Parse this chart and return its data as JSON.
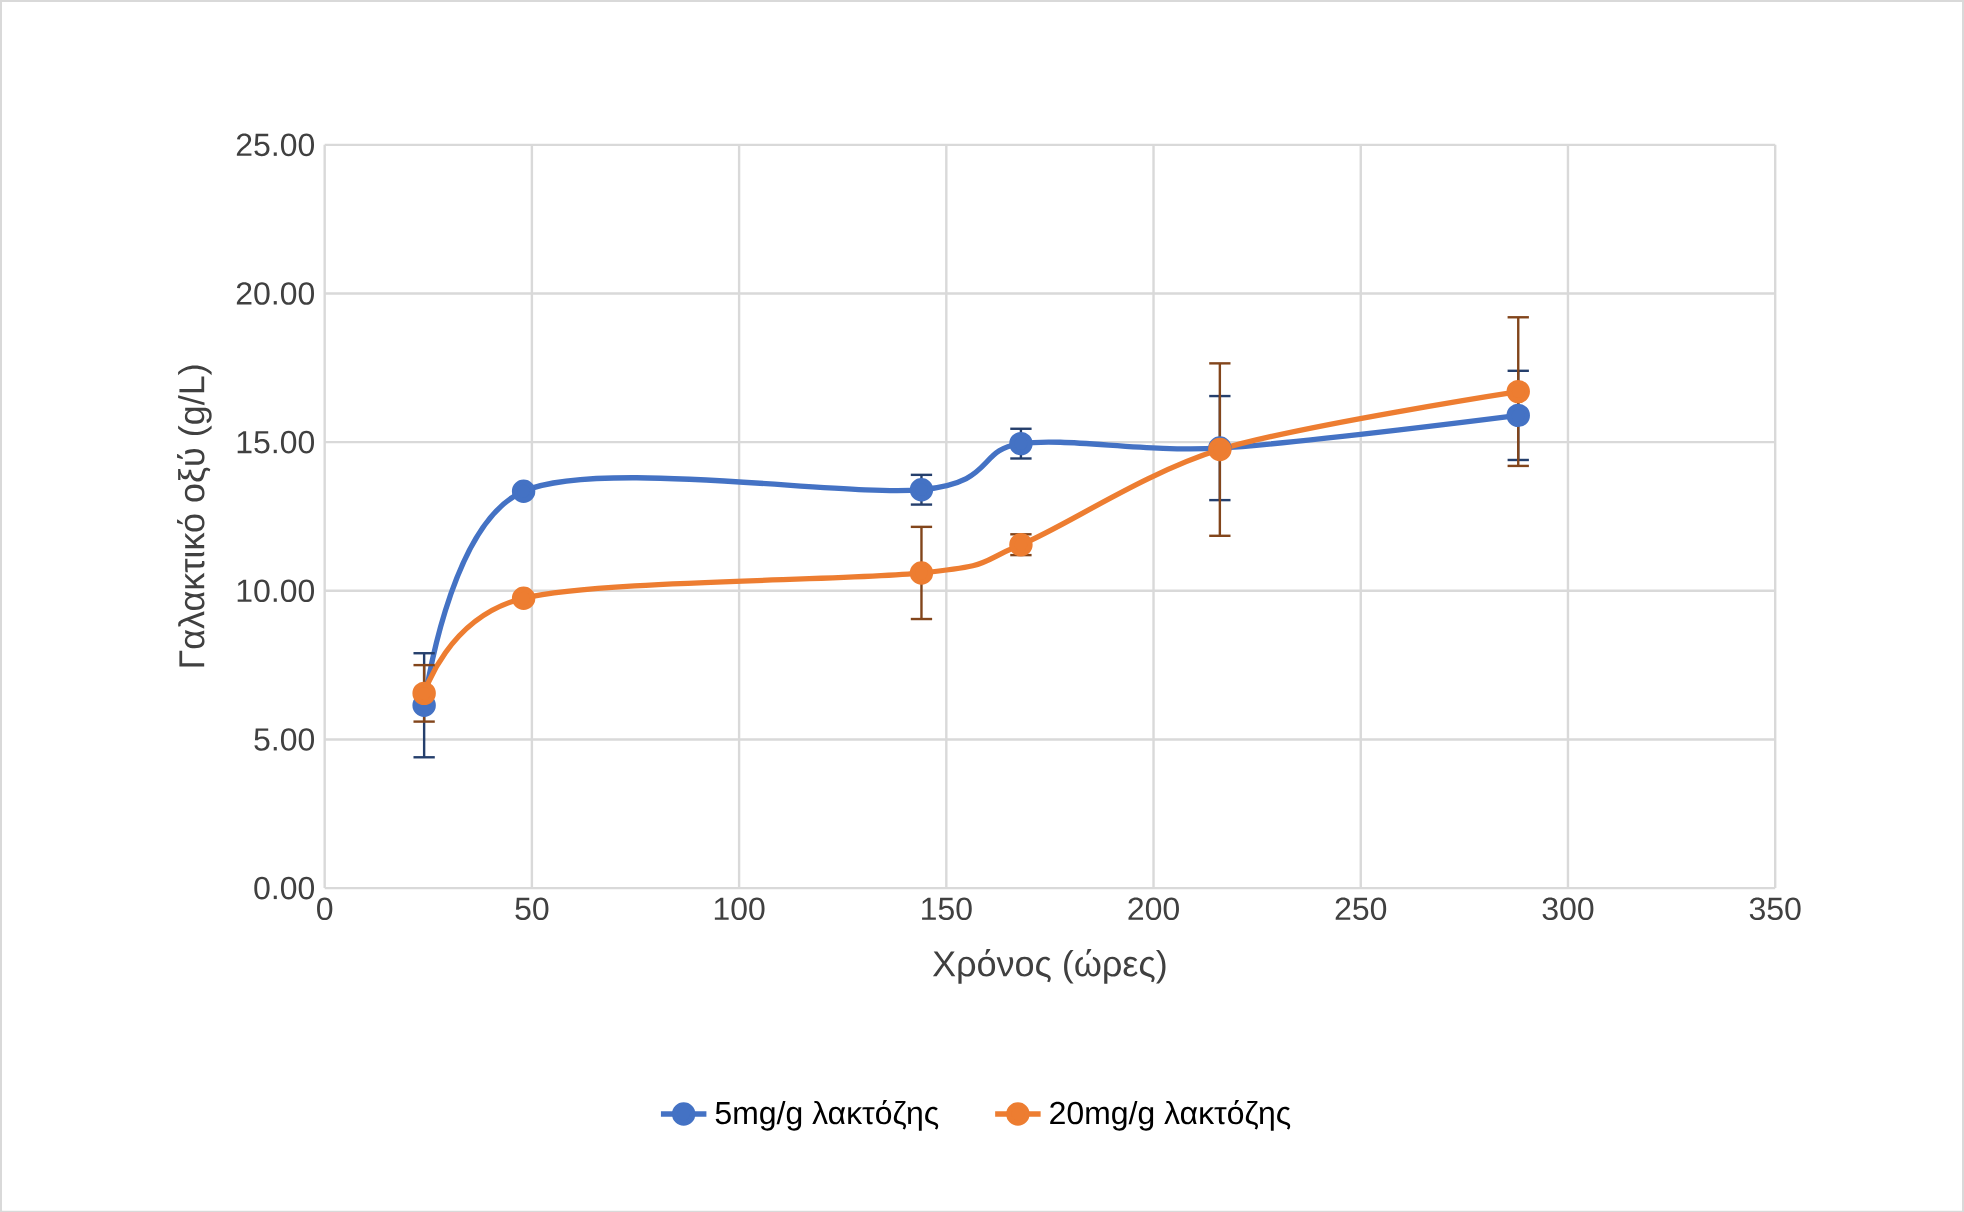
{
  "chart_data": {
    "type": "line",
    "xlabel": "Χρόνος (ώρες)",
    "ylabel": "Γαλακτικό οξύ (g/L)",
    "x": [
      24,
      48,
      144,
      168,
      216,
      288
    ],
    "series": [
      {
        "name": "5mg/g λακτόζης",
        "color": "#4472c4",
        "values": [
          6.15,
          13.35,
          13.4,
          14.95,
          14.8,
          15.9
        ],
        "errors": [
          1.75,
          0.1,
          0.5,
          0.5,
          1.75,
          1.5
        ]
      },
      {
        "name": "20mg/g λακτόζης",
        "color": "#ed7d31",
        "values": [
          6.55,
          9.75,
          10.6,
          11.55,
          14.75,
          16.7
        ],
        "errors": [
          0.95,
          0.1,
          1.55,
          0.35,
          2.9,
          2.5
        ]
      }
    ],
    "xlim": [
      0,
      350
    ],
    "xticks": [
      0,
      50,
      100,
      150,
      200,
      250,
      300,
      350
    ],
    "ylim": [
      0,
      25
    ],
    "yticks": [
      {
        "value": 0,
        "label": "0.00"
      },
      {
        "value": 5,
        "label": "5.00"
      },
      {
        "value": 10,
        "label": "10.00"
      },
      {
        "value": 15,
        "label": "15.00"
      },
      {
        "value": 20,
        "label": "20.00"
      },
      {
        "value": 25,
        "label": "25.00"
      }
    ],
    "grid": true,
    "legend": "bottom",
    "marker": "circle",
    "line_style": "solid"
  }
}
